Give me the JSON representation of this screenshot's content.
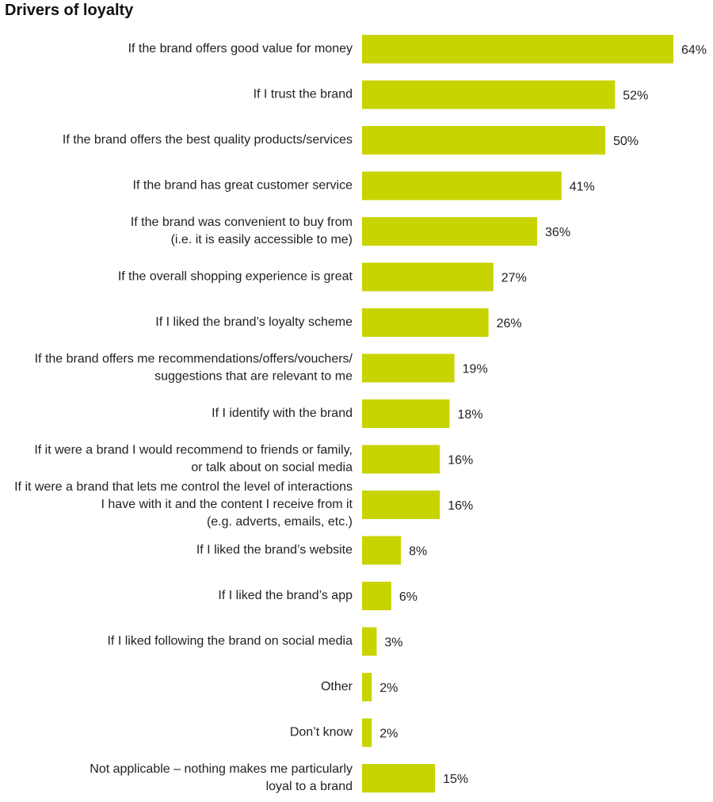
{
  "chart_data": {
    "type": "bar",
    "orientation": "horizontal",
    "title": "Drivers of loyalty",
    "xlabel": "",
    "ylabel": "",
    "value_suffix": "%",
    "xlim": [
      0,
      64
    ],
    "grid": false,
    "bar_color": "#c8d400",
    "categories": [
      [
        "If the brand offers good value for money"
      ],
      [
        "If I trust the brand"
      ],
      [
        "If the brand offers the best quality products/services"
      ],
      [
        "If the brand has great customer service"
      ],
      [
        "If the brand was convenient to buy from",
        "(i.e. it is easily accessible to me)"
      ],
      [
        "If the overall shopping experience is great"
      ],
      [
        "If I liked the brand’s loyalty scheme"
      ],
      [
        "If the brand offers me recommendations/offers/vouchers/",
        "suggestions that are relevant to me"
      ],
      [
        "If I identify with the brand"
      ],
      [
        "If it were a brand I would recommend to friends or family,",
        "or talk about on social media"
      ],
      [
        "If it were a brand that lets me control the level of interactions",
        "I have with it and the content I receive from it",
        "(e.g. adverts, emails, etc.)"
      ],
      [
        "If I liked the brand’s website"
      ],
      [
        "If I liked the brand’s app"
      ],
      [
        "If I liked following the brand on social media"
      ],
      [
        "Other"
      ],
      [
        "Don’t know"
      ],
      [
        "Not applicable – nothing makes me particularly",
        "loyal to a brand"
      ]
    ],
    "values": [
      64,
      52,
      50,
      41,
      36,
      27,
      26,
      19,
      18,
      16,
      16,
      8,
      6,
      3,
      2,
      2,
      15
    ]
  }
}
